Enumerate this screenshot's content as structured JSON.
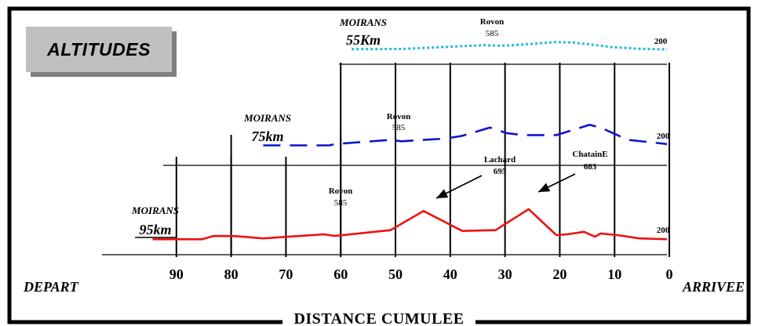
{
  "title": "ALTITUDES",
  "start_label": "DEPART",
  "end_label": "ARRIVEE",
  "chart_data": {
    "type": "line",
    "xlabel": "DISTANCE CUMULEE",
    "xlim": [
      95,
      0
    ],
    "x_ticks": [
      90,
      80,
      70,
      60,
      50,
      40,
      30,
      20,
      10,
      0
    ],
    "series": [
      {
        "name": "MOIRANS 95km",
        "route": "MOIRANS",
        "distance": "95km",
        "color": "#ee1111",
        "style": "solid",
        "reference_label": "200",
        "points": [
          [
            93,
            320
          ],
          [
            84,
            320
          ],
          [
            82,
            360
          ],
          [
            78,
            358
          ],
          [
            73,
            330
          ],
          [
            62,
            380
          ],
          [
            60,
            360
          ],
          [
            50,
            430
          ],
          [
            44,
            660
          ],
          [
            37,
            420
          ],
          [
            31,
            430
          ],
          [
            25,
            683
          ],
          [
            20,
            370
          ],
          [
            18,
            380
          ],
          [
            15,
            410
          ],
          [
            13,
            350
          ],
          [
            12,
            390
          ],
          [
            9,
            370
          ],
          [
            5,
            330
          ],
          [
            0,
            320
          ]
        ]
      },
      {
        "name": "MOIRANS 75km",
        "route": "MOIRANS",
        "distance": "75km",
        "color": "#1111cc",
        "style": "dashed",
        "reference_label": "200",
        "points": [
          [
            73,
            320
          ],
          [
            61,
            320
          ],
          [
            60,
            340
          ],
          [
            50,
            400
          ],
          [
            48,
            380
          ],
          [
            40,
            420
          ],
          [
            37,
            460
          ],
          [
            32,
            580
          ],
          [
            29,
            500
          ],
          [
            26,
            470
          ],
          [
            20,
            470
          ],
          [
            14,
            620
          ],
          [
            12,
            580
          ],
          [
            7,
            400
          ],
          [
            0,
            340
          ]
        ]
      },
      {
        "name": "MOIRANS 55Km",
        "route": "MOIRANS",
        "distance": "55Km",
        "color": "#22bbdd",
        "style": "dotted",
        "reference_label": "200",
        "points": [
          [
            57,
            250
          ],
          [
            48,
            260
          ],
          [
            33,
            450
          ],
          [
            32,
            430
          ],
          [
            29,
            420
          ],
          [
            22,
            560
          ],
          [
            20,
            600
          ],
          [
            17,
            580
          ],
          [
            10,
            350
          ],
          [
            5,
            270
          ],
          [
            0,
            240
          ]
        ]
      }
    ],
    "annotations": [
      {
        "name": "Rovon",
        "value": "585"
      },
      {
        "name": "Rovon",
        "value": "585"
      },
      {
        "name": "Rovon",
        "value": "585"
      },
      {
        "name": "Lachard",
        "value": "695"
      },
      {
        "name": "ChatainE",
        "value": "683"
      }
    ]
  }
}
